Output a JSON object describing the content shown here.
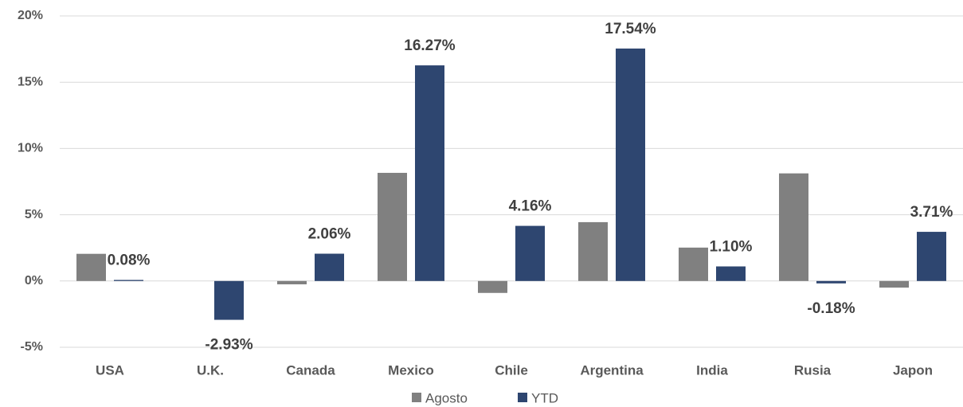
{
  "chart_data": {
    "type": "bar",
    "categories": [
      "USA",
      "U.K.",
      "Canada",
      "Mexico",
      "Chile",
      "Argentina",
      "India",
      "Rusia",
      "Japon"
    ],
    "series": [
      {
        "name": "Agosto",
        "color": "#808080",
        "values": [
          2.05,
          0,
          -0.25,
          8.16,
          -0.9,
          4.44,
          2.52,
          8.12,
          -0.5
        ]
      },
      {
        "name": "YTD",
        "color": "#2e4670",
        "values": [
          0.08,
          -2.93,
          2.06,
          16.27,
          4.16,
          17.54,
          1.1,
          -0.18,
          3.71
        ],
        "value_labels": [
          "0.08%",
          "-2.93%",
          "2.06%",
          "16.27%",
          "4.16%",
          "17.54%",
          "1.10%",
          "-0.18%",
          "3.71%"
        ]
      }
    ],
    "ylim": [
      -5,
      20
    ],
    "yticks": [
      {
        "value": -5,
        "label": "-5%"
      },
      {
        "value": 0,
        "label": "0%"
      },
      {
        "value": 5,
        "label": "5%"
      },
      {
        "value": 10,
        "label": "10%"
      },
      {
        "value": 15,
        "label": "15%"
      },
      {
        "value": 20,
        "label": "20%"
      }
    ],
    "grid": true
  }
}
